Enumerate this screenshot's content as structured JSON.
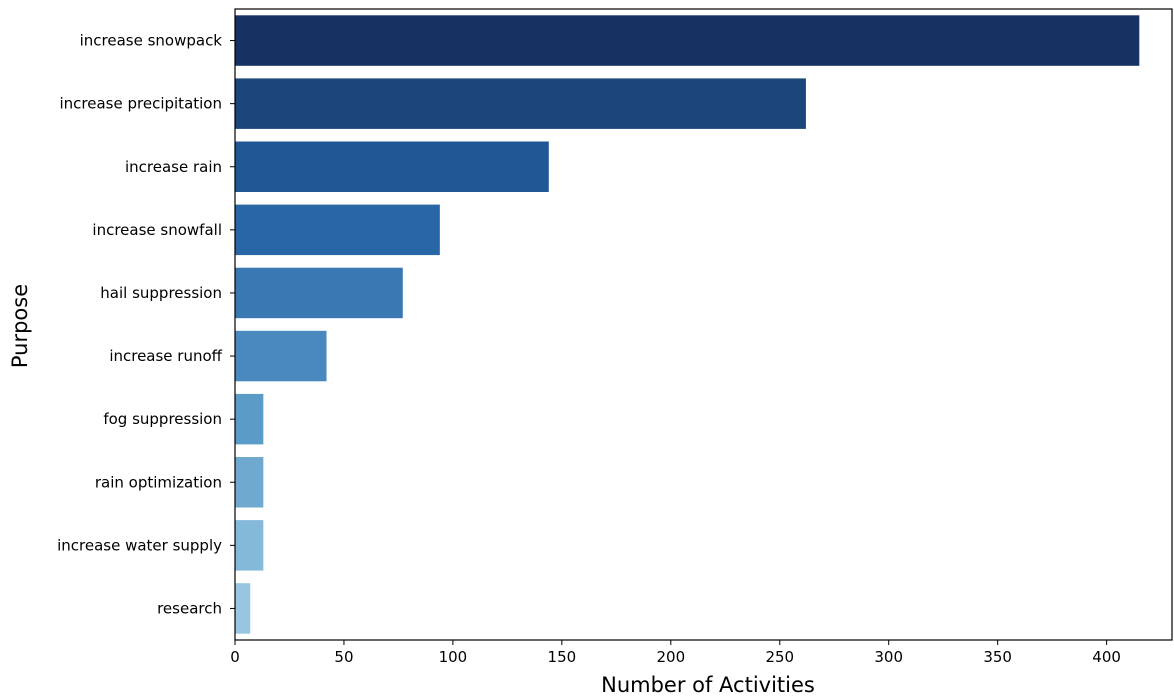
{
  "chart_data": {
    "type": "bar",
    "orientation": "horizontal",
    "title": "",
    "xlabel": "Number of Activities",
    "ylabel": "Purpose",
    "xlim": [
      0,
      430
    ],
    "x_ticks": [
      0,
      50,
      100,
      150,
      200,
      250,
      300,
      350,
      400
    ],
    "grid": false,
    "categories": [
      "increase snowpack",
      "increase precipitation",
      "increase rain",
      "increase snowfall",
      "hail suppression",
      "increase runoff",
      "fog suppression",
      "rain optimization",
      "increase water supply",
      "research"
    ],
    "values": [
      415,
      262,
      144,
      94,
      77,
      42,
      13,
      13,
      13,
      7
    ],
    "colors": [
      "#163263",
      "#1b457b",
      "#1f5894",
      "#2866a5",
      "#3978b3",
      "#4a89be",
      "#5b9bc8",
      "#6fa9d0",
      "#85b9d9",
      "#99c6df"
    ]
  }
}
